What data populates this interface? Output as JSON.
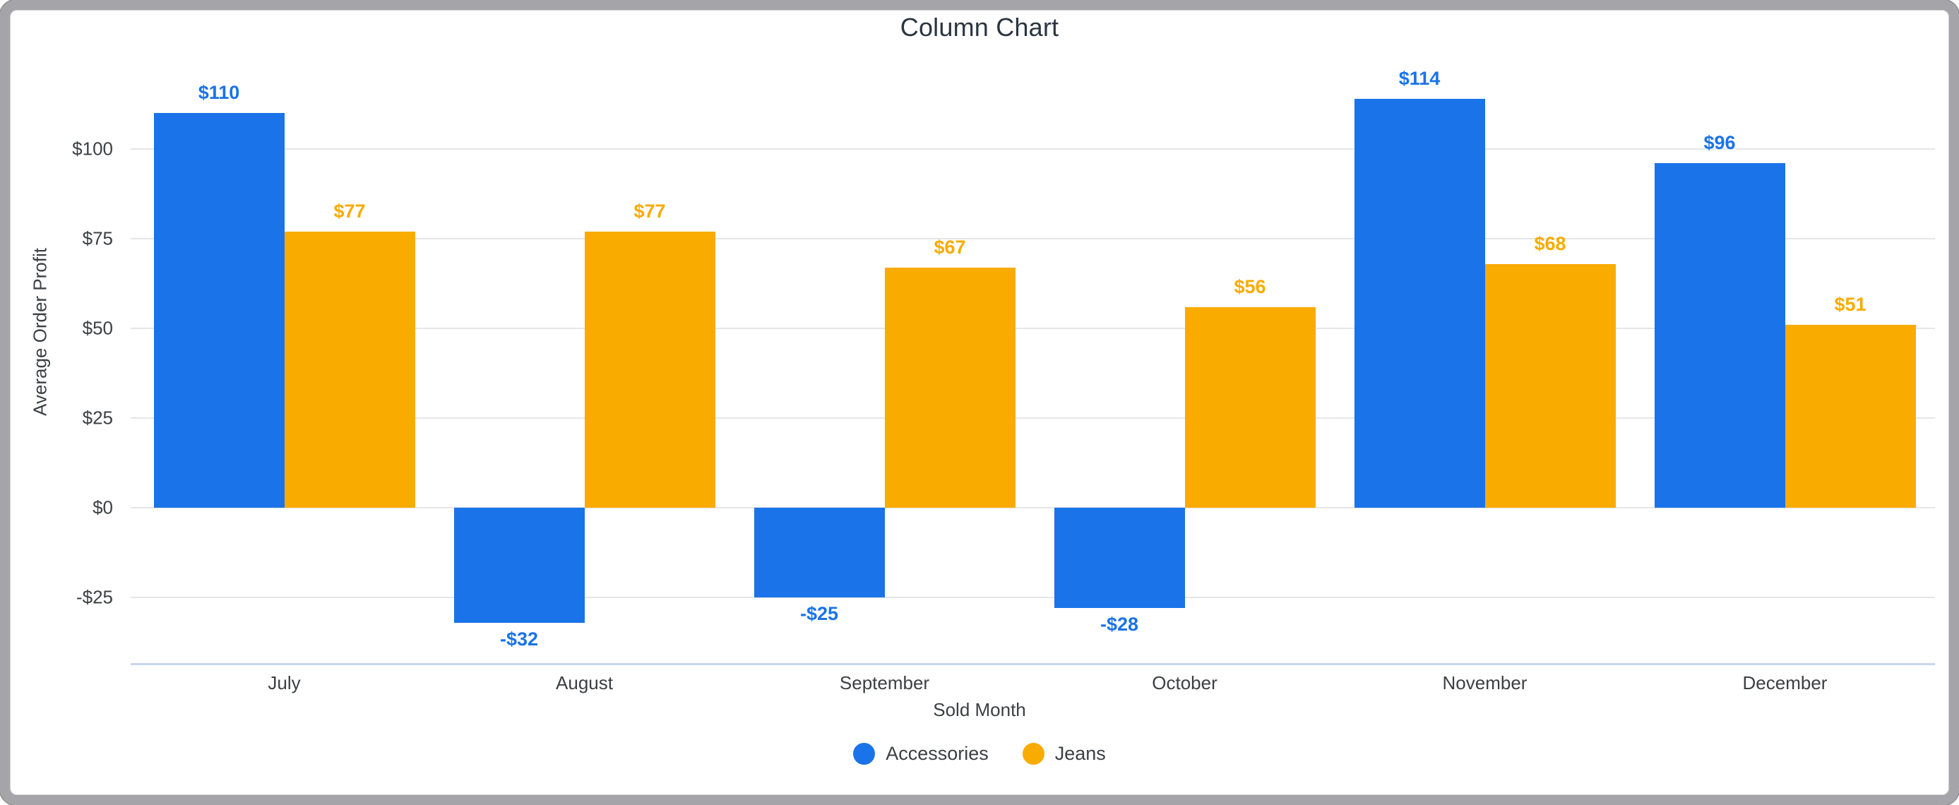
{
  "window": {
    "frame_border_color": "#a5a5a9",
    "background_color": "#ffffff"
  },
  "chart_data": {
    "type": "bar",
    "title": "Column Chart",
    "xlabel": "Sold Month",
    "ylabel": "Average Order Profit",
    "categories": [
      "July",
      "August",
      "September",
      "October",
      "November",
      "December"
    ],
    "series": [
      {
        "name": "Accessories",
        "color": "#1a73e8",
        "values": [
          110,
          -32,
          -25,
          -28,
          114,
          96
        ],
        "data_labels": [
          "$110",
          "-$32",
          "-$25",
          "-$28",
          "$114",
          "$96"
        ]
      },
      {
        "name": "Jeans",
        "color": "#f9ab00",
        "values": [
          77,
          77,
          67,
          56,
          68,
          51
        ],
        "data_labels": [
          "$77",
          "$77",
          "$67",
          "$56",
          "$68",
          "$51"
        ]
      }
    ],
    "y_ticks": [
      {
        "value": 100,
        "label": "$100"
      },
      {
        "value": 75,
        "label": "$75"
      },
      {
        "value": 50,
        "label": "$50"
      },
      {
        "value": 25,
        "label": "$25"
      },
      {
        "value": 0,
        "label": "$0"
      },
      {
        "value": -25,
        "label": "-$25"
      }
    ],
    "ylim": [
      -44,
      122
    ],
    "grid": true,
    "gridline_color": "#e6e6e6",
    "axis_line_color": "#c9d6ee",
    "legend_position": "bottom",
    "data_label_format": "currency"
  }
}
